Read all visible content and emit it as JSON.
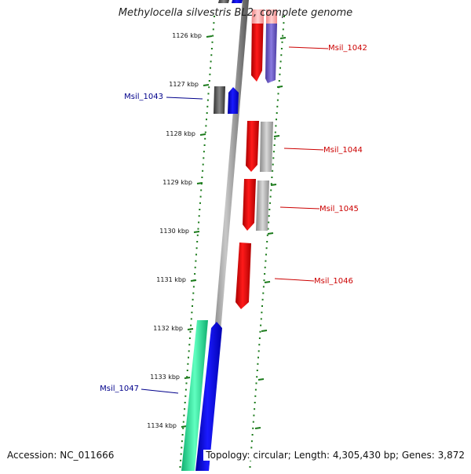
{
  "title": "Methylocella silvestris BL2, complete genome",
  "footer": {
    "accession": "Accession: NC_011666",
    "summary": "Topology: circular; Length: 4,305,430 bp; Genes: 3,872"
  },
  "colors": {
    "backbone": "#888888",
    "tick": "#1a7a1a",
    "forward_label": "#00008b",
    "reverse_label": "#cc0000"
  },
  "ticks": [
    {
      "label": "1126 kbp"
    },
    {
      "label": "1127 kbp"
    },
    {
      "label": "1128 kbp"
    },
    {
      "label": "1129 kbp"
    },
    {
      "label": "1130 kbp"
    },
    {
      "label": "1131 kbp"
    },
    {
      "label": "1132 kbp"
    },
    {
      "label": "1133 kbp"
    },
    {
      "label": "1134 kbp"
    }
  ],
  "gene_labels": [
    {
      "text": "Msil_1042",
      "strand": "reverse"
    },
    {
      "text": "Msil_1043",
      "strand": "forward"
    },
    {
      "text": "Msil_1044",
      "strand": "reverse"
    },
    {
      "text": "Msil_1045",
      "strand": "reverse"
    },
    {
      "text": "Msil_1046",
      "strand": "reverse"
    },
    {
      "text": "Msil_1047",
      "strand": "forward"
    }
  ]
}
